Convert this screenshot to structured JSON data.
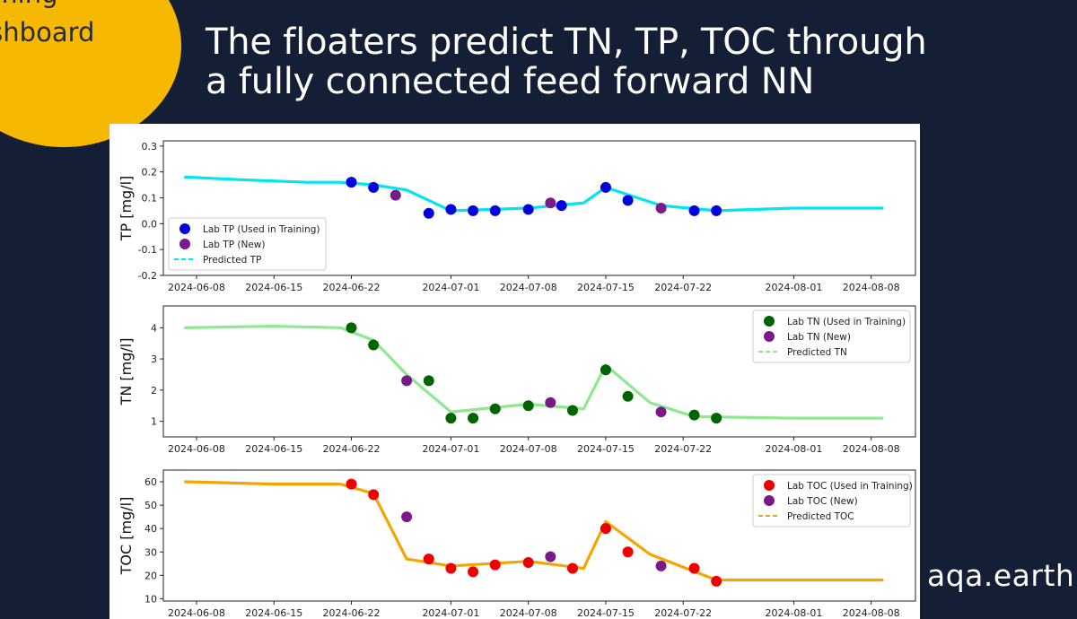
{
  "badge": {
    "line1": "farming",
    "line2": "dashboard"
  },
  "title": {
    "line1": "The floaters predict TN, TP, TOC through",
    "line2": "a fully connected feed forward NN"
  },
  "brand": "aqa.earth",
  "colors": {
    "background": "#141e35",
    "badge": "#f6b800",
    "tp_pred": "#00e5ee",
    "tp_train": "#0000dd",
    "tn_pred": "#8fe88f",
    "tn_train": "#006400",
    "toc_pred": "#f5a500",
    "toc_train": "#ee0000",
    "new": "#7a1a8a"
  },
  "chart_data": [
    {
      "type": "line",
      "ylabel": "TP [mg/l]",
      "ylim": [
        -0.2,
        0.32
      ],
      "xlim": [
        "2024-06-05",
        "2024-08-12"
      ],
      "yticks": [
        "0.3",
        "0.2",
        "0.1",
        "0.0",
        "-0.1",
        "-0.2"
      ],
      "ytick_values": [
        0.3,
        0.2,
        0.1,
        0.0,
        -0.1,
        -0.2
      ],
      "xticks": [
        "2024-06-08",
        "2024-06-15",
        "2024-06-22",
        "2024-07-01",
        "2024-07-08",
        "2024-07-15",
        "2024-07-22",
        "2024-08-01",
        "2024-08-08"
      ],
      "legend_position": "lower-left",
      "series": [
        {
          "name": "Lab TP (Used in Training)",
          "kind": "scatter",
          "color": "#0000dd",
          "x": [
            "2024-06-22",
            "2024-06-24",
            "2024-06-29",
            "2024-07-01",
            "2024-07-03",
            "2024-07-05",
            "2024-07-08",
            "2024-07-11",
            "2024-07-15",
            "2024-07-17",
            "2024-07-23",
            "2024-07-25"
          ],
          "y": [
            0.16,
            0.14,
            0.04,
            0.055,
            0.05,
            0.05,
            0.055,
            0.07,
            0.14,
            0.09,
            0.05,
            0.05
          ]
        },
        {
          "name": "Lab TP (New)",
          "kind": "scatter",
          "color": "#7a1a8a",
          "x": [
            "2024-06-26",
            "2024-07-10",
            "2024-07-20"
          ],
          "y": [
            0.11,
            0.08,
            0.06
          ]
        },
        {
          "name": "Predicted TP",
          "kind": "line",
          "color": "#00e5ee",
          "x": [
            "2024-06-07",
            "2024-06-12",
            "2024-06-18",
            "2024-06-21",
            "2024-06-24",
            "2024-06-27",
            "2024-07-01",
            "2024-07-08",
            "2024-07-13",
            "2024-07-15",
            "2024-07-20",
            "2024-07-25",
            "2024-08-01",
            "2024-08-09"
          ],
          "y": [
            0.18,
            0.17,
            0.16,
            0.16,
            0.15,
            0.13,
            0.05,
            0.06,
            0.08,
            0.14,
            0.07,
            0.05,
            0.06,
            0.06
          ]
        }
      ]
    },
    {
      "type": "line",
      "ylabel": "TN [mg/l]",
      "ylim": [
        0.5,
        4.7
      ],
      "xlim": [
        "2024-06-05",
        "2024-08-12"
      ],
      "yticks": [
        "4",
        "3",
        "2",
        "1"
      ],
      "ytick_values": [
        4,
        3,
        2,
        1
      ],
      "xticks": [
        "2024-06-08",
        "2024-06-15",
        "2024-06-22",
        "2024-07-01",
        "2024-07-08",
        "2024-07-15",
        "2024-07-22",
        "2024-08-01",
        "2024-08-08"
      ],
      "legend_position": "upper-right",
      "series": [
        {
          "name": "Lab TN (Used in Training)",
          "kind": "scatter",
          "color": "#006400",
          "x": [
            "2024-06-22",
            "2024-06-24",
            "2024-06-29",
            "2024-07-01",
            "2024-07-03",
            "2024-07-05",
            "2024-07-08",
            "2024-07-12",
            "2024-07-15",
            "2024-07-17",
            "2024-07-23",
            "2024-07-25"
          ],
          "y": [
            4.0,
            3.45,
            2.3,
            1.1,
            1.1,
            1.4,
            1.5,
            1.35,
            2.65,
            1.8,
            1.2,
            1.1
          ]
        },
        {
          "name": "Lab TN (New)",
          "kind": "scatter",
          "color": "#7a1a8a",
          "x": [
            "2024-06-27",
            "2024-07-10",
            "2024-07-20"
          ],
          "y": [
            2.3,
            1.6,
            1.3
          ]
        },
        {
          "name": "Predicted TN",
          "kind": "line",
          "color": "#8fe88f",
          "x": [
            "2024-06-07",
            "2024-06-15",
            "2024-06-21",
            "2024-06-24",
            "2024-06-27",
            "2024-07-01",
            "2024-07-08",
            "2024-07-13",
            "2024-07-15",
            "2024-07-19",
            "2024-07-23",
            "2024-08-01",
            "2024-08-09"
          ],
          "y": [
            4.0,
            4.05,
            4.0,
            3.6,
            2.5,
            1.3,
            1.55,
            1.4,
            2.8,
            1.6,
            1.15,
            1.1,
            1.1
          ]
        }
      ]
    },
    {
      "type": "line",
      "ylabel": "TOC [mg/l]",
      "ylim": [
        9,
        65
      ],
      "xlim": [
        "2024-06-05",
        "2024-08-12"
      ],
      "yticks": [
        "60",
        "50",
        "40",
        "30",
        "20",
        "10"
      ],
      "ytick_values": [
        60,
        50,
        40,
        30,
        20,
        10
      ],
      "xticks": [
        "2024-06-08",
        "2024-06-15",
        "2024-06-22",
        "2024-07-01",
        "2024-07-08",
        "2024-07-15",
        "2024-07-22",
        "2024-08-01",
        "2024-08-08"
      ],
      "legend_position": "upper-right",
      "series": [
        {
          "name": "Lab TOC (Used in Training)",
          "kind": "scatter",
          "color": "#ee0000",
          "x": [
            "2024-06-22",
            "2024-06-24",
            "2024-06-29",
            "2024-07-01",
            "2024-07-03",
            "2024-07-05",
            "2024-07-08",
            "2024-07-12",
            "2024-07-15",
            "2024-07-17",
            "2024-07-23",
            "2024-07-25"
          ],
          "y": [
            59,
            54.5,
            27,
            23,
            21.5,
            24.5,
            25.5,
            23,
            40,
            30,
            23,
            17.5
          ]
        },
        {
          "name": "Lab TOC (New)",
          "kind": "scatter",
          "color": "#7a1a8a",
          "x": [
            "2024-06-27",
            "2024-07-10",
            "2024-07-20"
          ],
          "y": [
            45,
            28,
            24
          ]
        },
        {
          "name": "Predicted TOC",
          "kind": "line",
          "color": "#f5a500",
          "x": [
            "2024-06-07",
            "2024-06-15",
            "2024-06-21",
            "2024-06-24",
            "2024-06-27",
            "2024-07-01",
            "2024-07-08",
            "2024-07-13",
            "2024-07-15",
            "2024-07-19",
            "2024-07-25",
            "2024-08-01",
            "2024-08-09"
          ],
          "y": [
            60,
            59,
            59,
            55,
            27,
            24,
            26,
            23,
            43,
            29,
            18,
            18,
            18
          ]
        }
      ]
    }
  ]
}
